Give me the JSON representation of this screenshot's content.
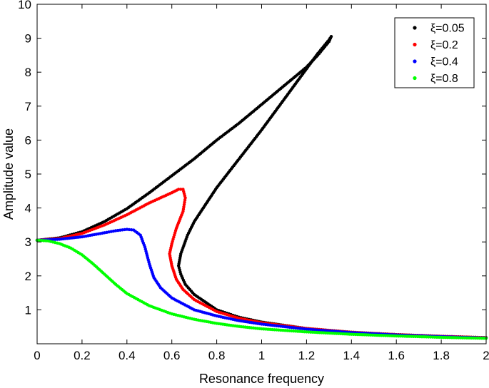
{
  "chart_data": {
    "type": "scatter",
    "title": "",
    "xlabel": "Resonance frequency",
    "ylabel": "Amplitude value",
    "xlim": [
      0,
      2
    ],
    "ylim": [
      0,
      10
    ],
    "xticks": [
      0,
      0.2,
      0.4,
      0.6,
      0.8,
      1,
      1.2,
      1.4,
      1.6,
      1.8,
      2
    ],
    "xtick_labels": [
      "0",
      "0.2",
      "0.4",
      "0.6",
      "0.8",
      "1",
      "1.2",
      "1.4",
      "1.6",
      "1.8",
      "2"
    ],
    "yticks": [
      1,
      2,
      3,
      4,
      5,
      6,
      7,
      8,
      9,
      10
    ],
    "ytick_labels": [
      "1",
      "2",
      "3",
      "4",
      "5",
      "6",
      "7",
      "8",
      "9",
      "10"
    ],
    "grid": false,
    "legend_position": "top-right",
    "series": [
      {
        "name": "ξ=0.05",
        "color": "#000000",
        "points": [
          [
            0,
            3.05
          ],
          [
            0.1,
            3.12
          ],
          [
            0.2,
            3.3
          ],
          [
            0.3,
            3.6
          ],
          [
            0.4,
            3.98
          ],
          [
            0.5,
            4.45
          ],
          [
            0.6,
            4.95
          ],
          [
            0.7,
            5.45
          ],
          [
            0.8,
            6.0
          ],
          [
            0.9,
            6.5
          ],
          [
            1.0,
            7.05
          ],
          [
            1.1,
            7.6
          ],
          [
            1.2,
            8.15
          ],
          [
            1.25,
            8.5
          ],
          [
            1.3,
            8.9
          ],
          [
            1.31,
            9.05
          ],
          [
            1.3,
            8.95
          ],
          [
            1.25,
            8.55
          ],
          [
            1.2,
            8.1
          ],
          [
            1.1,
            7.2
          ],
          [
            1.0,
            6.3
          ],
          [
            0.9,
            5.45
          ],
          [
            0.8,
            4.6
          ],
          [
            0.75,
            4.1
          ],
          [
            0.7,
            3.6
          ],
          [
            0.67,
            3.2
          ],
          [
            0.64,
            2.65
          ],
          [
            0.63,
            2.3
          ],
          [
            0.64,
            2.05
          ],
          [
            0.66,
            1.75
          ],
          [
            0.7,
            1.45
          ],
          [
            0.8,
            1.0
          ],
          [
            0.9,
            0.78
          ],
          [
            1.0,
            0.64
          ],
          [
            1.2,
            0.45
          ],
          [
            1.4,
            0.34
          ],
          [
            1.6,
            0.27
          ],
          [
            1.8,
            0.22
          ],
          [
            2.0,
            0.18
          ]
        ]
      },
      {
        "name": "ξ=0.2",
        "color": "#ff0000",
        "points": [
          [
            0,
            3.05
          ],
          [
            0.1,
            3.1
          ],
          [
            0.2,
            3.25
          ],
          [
            0.3,
            3.5
          ],
          [
            0.4,
            3.8
          ],
          [
            0.5,
            4.15
          ],
          [
            0.6,
            4.45
          ],
          [
            0.63,
            4.55
          ],
          [
            0.65,
            4.55
          ],
          [
            0.66,
            4.3
          ],
          [
            0.65,
            3.9
          ],
          [
            0.62,
            3.4
          ],
          [
            0.6,
            2.95
          ],
          [
            0.59,
            2.65
          ],
          [
            0.6,
            2.3
          ],
          [
            0.62,
            1.9
          ],
          [
            0.65,
            1.6
          ],
          [
            0.7,
            1.3
          ],
          [
            0.8,
            0.95
          ],
          [
            0.9,
            0.75
          ],
          [
            1.0,
            0.62
          ],
          [
            1.2,
            0.45
          ],
          [
            1.4,
            0.34
          ],
          [
            1.6,
            0.27
          ],
          [
            1.8,
            0.22
          ],
          [
            2.0,
            0.18
          ]
        ]
      },
      {
        "name": "ξ=0.4",
        "color": "#0000ff",
        "points": [
          [
            0,
            3.05
          ],
          [
            0.1,
            3.08
          ],
          [
            0.2,
            3.15
          ],
          [
            0.3,
            3.27
          ],
          [
            0.35,
            3.33
          ],
          [
            0.4,
            3.37
          ],
          [
            0.43,
            3.35
          ],
          [
            0.46,
            3.2
          ],
          [
            0.48,
            2.85
          ],
          [
            0.5,
            2.35
          ],
          [
            0.52,
            1.95
          ],
          [
            0.55,
            1.65
          ],
          [
            0.6,
            1.35
          ],
          [
            0.7,
            1.0
          ],
          [
            0.8,
            0.82
          ],
          [
            0.9,
            0.68
          ],
          [
            1.0,
            0.58
          ],
          [
            1.2,
            0.43
          ],
          [
            1.4,
            0.33
          ],
          [
            1.6,
            0.26
          ],
          [
            1.8,
            0.21
          ],
          [
            2.0,
            0.17
          ]
        ]
      },
      {
        "name": "ξ=0.8",
        "color": "#00ff00",
        "points": [
          [
            0,
            3.05
          ],
          [
            0.05,
            3.03
          ],
          [
            0.1,
            2.95
          ],
          [
            0.15,
            2.82
          ],
          [
            0.2,
            2.62
          ],
          [
            0.25,
            2.35
          ],
          [
            0.3,
            2.05
          ],
          [
            0.35,
            1.75
          ],
          [
            0.4,
            1.48
          ],
          [
            0.5,
            1.12
          ],
          [
            0.6,
            0.88
          ],
          [
            0.7,
            0.72
          ],
          [
            0.8,
            0.6
          ],
          [
            0.9,
            0.51
          ],
          [
            1.0,
            0.44
          ],
          [
            1.2,
            0.35
          ],
          [
            1.4,
            0.28
          ],
          [
            1.6,
            0.23
          ],
          [
            1.8,
            0.19
          ],
          [
            2.0,
            0.16
          ]
        ]
      }
    ]
  }
}
